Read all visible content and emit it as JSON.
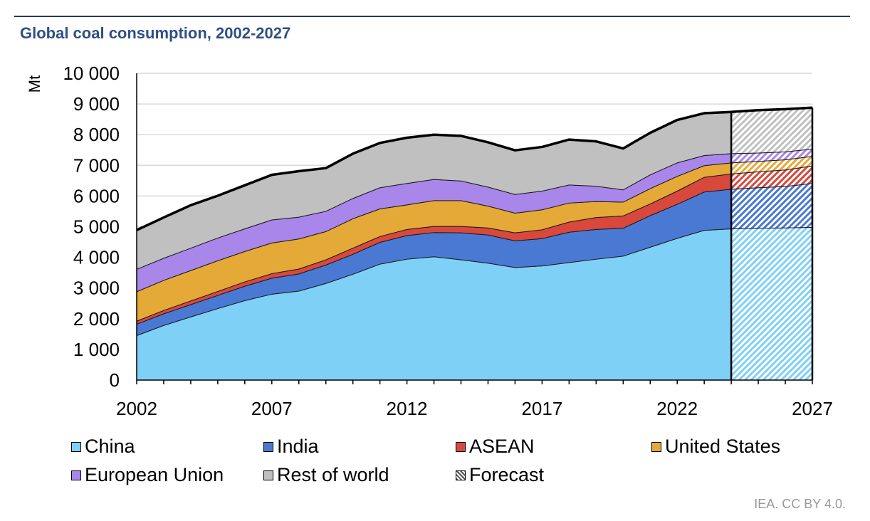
{
  "title": "Global coal consumption, 2002-2027",
  "source": "IEA. CC BY 4.0.",
  "chart_data": {
    "type": "area",
    "stacked": true,
    "title": "Global coal consumption, 2002-2027",
    "ylabel": "Mt",
    "xlabel": "",
    "x": [
      2002,
      2003,
      2004,
      2005,
      2006,
      2007,
      2008,
      2009,
      2010,
      2011,
      2012,
      2013,
      2014,
      2015,
      2016,
      2017,
      2018,
      2019,
      2020,
      2021,
      2022,
      2023,
      2024,
      2025,
      2026,
      2027
    ],
    "xticks": [
      "2002",
      "2007",
      "2012",
      "2017",
      "2022",
      "2027"
    ],
    "yticks": [
      "0",
      "1 000",
      "2 000",
      "3 000",
      "4 000",
      "5 000",
      "6 000",
      "7 000",
      "8 000",
      "9 000",
      "10 000"
    ],
    "ylim": [
      0,
      10000
    ],
    "xlim": [
      2002,
      2027
    ],
    "forecast_start": 2024,
    "grid": true,
    "series": [
      {
        "name": "China",
        "color": "#7fd0f7",
        "values": [
          1450,
          1780,
          2060,
          2330,
          2590,
          2800,
          2900,
          3150,
          3450,
          3780,
          3940,
          4020,
          3920,
          3810,
          3670,
          3720,
          3830,
          3940,
          4040,
          4330,
          4620,
          4880,
          4930,
          4950,
          4960,
          4980
        ]
      },
      {
        "name": "India",
        "color": "#4a79d4",
        "values": [
          370,
          380,
          400,
          430,
          470,
          520,
          560,
          600,
          650,
          710,
          770,
          790,
          880,
          920,
          870,
          890,
          990,
          970,
          910,
          1030,
          1110,
          1250,
          1290,
          1320,
          1350,
          1430
        ]
      },
      {
        "name": "ASEAN",
        "color": "#d8483c",
        "values": [
          100,
          110,
          120,
          130,
          140,
          150,
          160,
          170,
          200,
          190,
          200,
          200,
          210,
          230,
          260,
          290,
          330,
          390,
          400,
          380,
          430,
          480,
          500,
          520,
          540,
          570
        ]
      },
      {
        "name": "United States",
        "color": "#e5a937",
        "values": [
          960,
          980,
          990,
          1000,
          990,
          1000,
          980,
          920,
          960,
          900,
          800,
          840,
          840,
          710,
          640,
          650,
          620,
          520,
          450,
          500,
          480,
          380,
          360,
          340,
          330,
          310
        ]
      },
      {
        "name": "European Union",
        "color": "#a986ea",
        "values": [
          730,
          720,
          730,
          740,
          740,
          750,
          710,
          660,
          660,
          690,
          700,
          690,
          640,
          620,
          610,
          610,
          590,
          500,
          400,
          450,
          440,
          330,
          300,
          270,
          260,
          240
        ]
      },
      {
        "name": "Rest of world",
        "color": "#c0c0c0",
        "values": [
          1280,
          1330,
          1400,
          1380,
          1420,
          1470,
          1500,
          1410,
          1460,
          1460,
          1490,
          1460,
          1470,
          1460,
          1440,
          1440,
          1480,
          1460,
          1350,
          1370,
          1400,
          1380,
          1360,
          1400,
          1390,
          1350
        ]
      }
    ],
    "legend": [
      "China",
      "India",
      "ASEAN",
      "United States",
      "European Union",
      "Rest of world",
      "Forecast"
    ],
    "legend_placement": "bottom"
  }
}
